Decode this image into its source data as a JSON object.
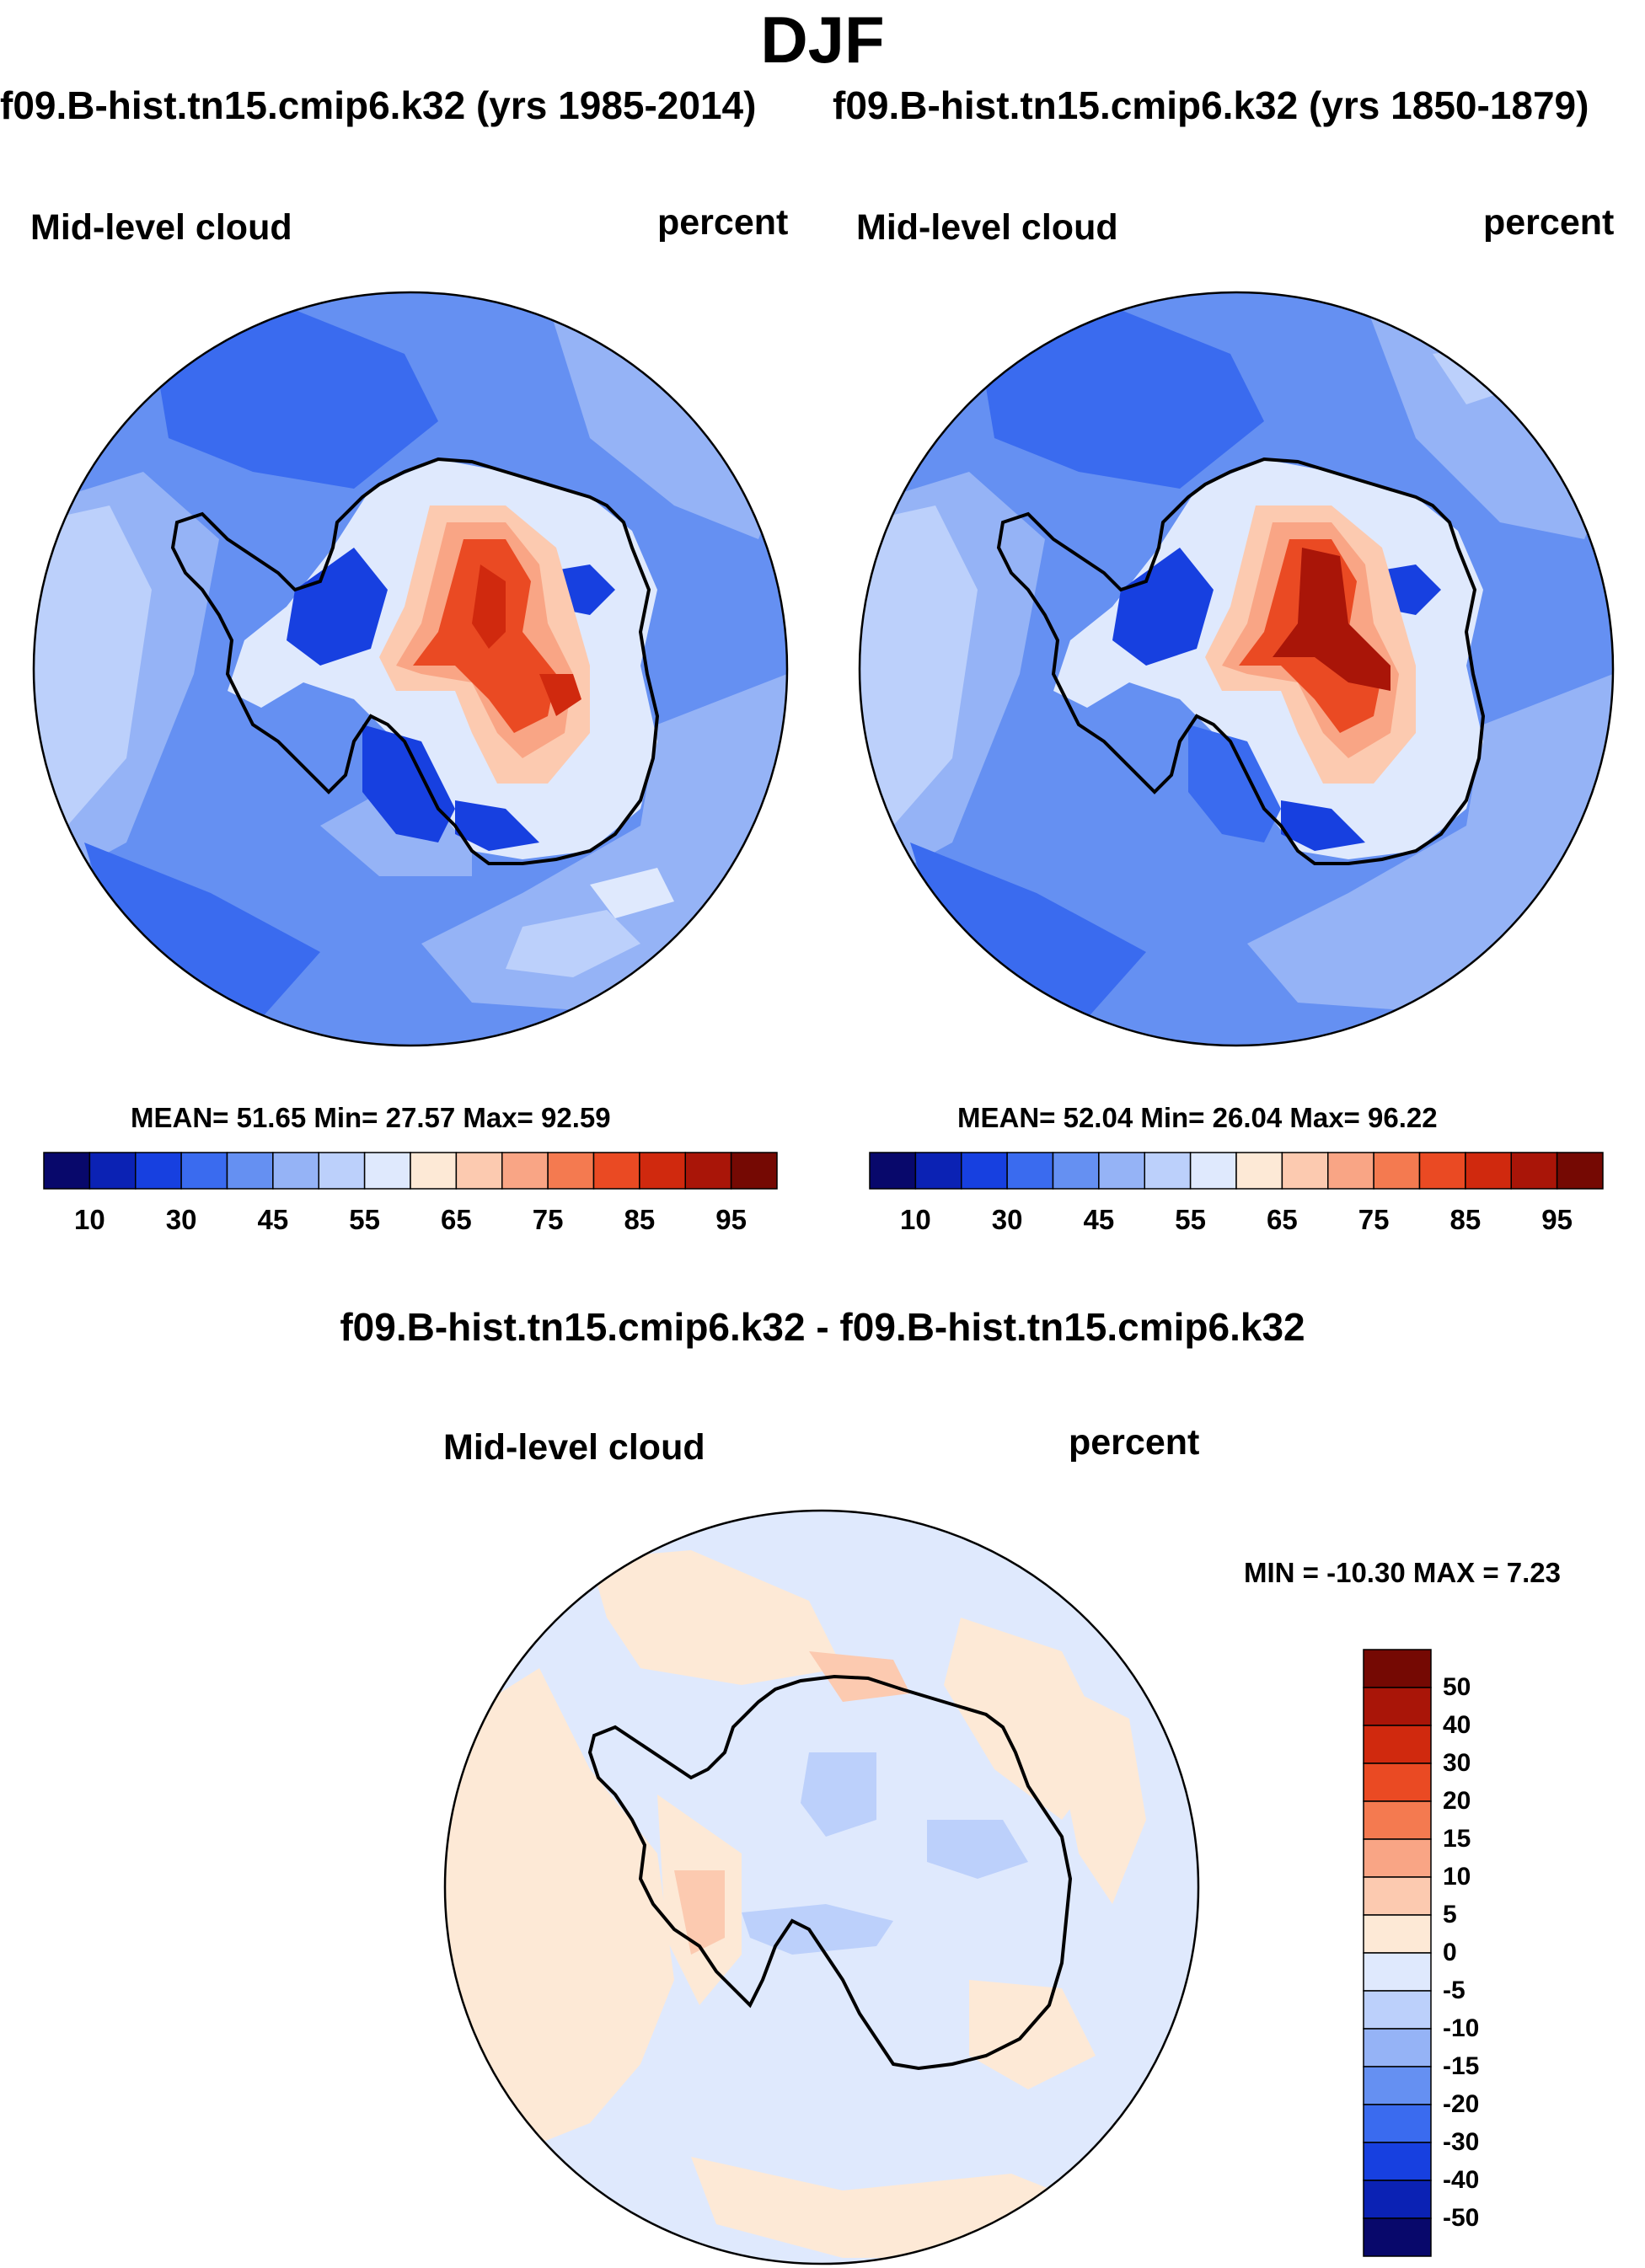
{
  "figure": {
    "title": "DJF",
    "case_left": "f09.B-hist.tn15.cmip6.k32 (yrs 1985-2014)",
    "case_right": "f09.B-hist.tn15.cmip6.k32 (yrs 1850-1879)",
    "diff_title": "f09.B-hist.tn15.cmip6.k32 - f09.B-hist.tn15.cmip6.k32"
  },
  "panels": {
    "left": {
      "variable": "Mid-level cloud",
      "units": "percent",
      "stats": "MEAN=  51.65  Min=  27.57  Max=  92.59"
    },
    "right": {
      "variable": "Mid-level cloud",
      "units": "percent",
      "stats": "MEAN=  52.04  Min=  26.04  Max=  96.22"
    },
    "diff": {
      "variable": "Mid-level cloud",
      "units": "percent",
      "stats": "MIN = -10.30 MAX =   7.23"
    }
  },
  "colorbars": {
    "main": {
      "labels": [
        "10",
        "30",
        "45",
        "55",
        "65",
        "75",
        "85",
        "95"
      ],
      "colors": [
        "#08086b",
        "#0b22b4",
        "#1740e0",
        "#3a6bef",
        "#6590f2",
        "#95b3f6",
        "#bcd0fb",
        "#dfe9fd",
        "#fde9d6",
        "#fccab0",
        "#f9a585",
        "#f47a50",
        "#ea4a23",
        "#d0290e",
        "#a91508",
        "#750903"
      ]
    },
    "diff": {
      "labels": [
        "50",
        "40",
        "30",
        "20",
        "15",
        "10",
        "5",
        "0",
        "-5",
        "-10",
        "-15",
        "-20",
        "-30",
        "-40",
        "-50"
      ],
      "colors": [
        "#750903",
        "#a91508",
        "#d0290e",
        "#ea4a23",
        "#f47a50",
        "#f9a585",
        "#fccab0",
        "#fde9d6",
        "#dfe9fd",
        "#bcd0fb",
        "#95b3f6",
        "#6590f2",
        "#3a6bef",
        "#1740e0",
        "#0b22b4",
        "#08086b"
      ]
    }
  },
  "legend": {
    "main_labels": [
      "10",
      "30",
      "45",
      "55",
      "65",
      "75",
      "85",
      "95"
    ],
    "diff_labels": [
      "50",
      "40",
      "30",
      "20",
      "15",
      "10",
      "5",
      "0",
      "-5",
      "-10",
      "-15",
      "-20",
      "-30",
      "-40",
      "-50"
    ]
  }
}
